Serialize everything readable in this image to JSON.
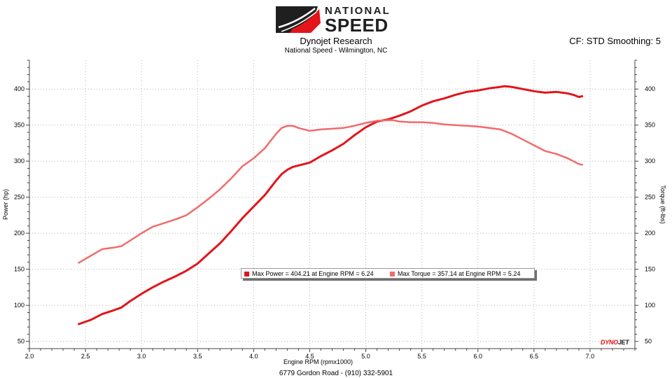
{
  "header": {
    "brand_line1": "NATIONAL",
    "brand_line2": "SPEED",
    "title": "Dynojet Research",
    "subtitle": "National Speed - Wilmington, NC",
    "cf_label": "CF: STD Smoothing: 5"
  },
  "footer": {
    "address": "6779 Gordon Road - (910) 332-5901"
  },
  "watermark": {
    "part1": "DYNO",
    "part2": "JET"
  },
  "legend": {
    "items": [
      {
        "text": "Max Power = 404.21 at Engine RPM = 6.24",
        "color": "#e3141a"
      },
      {
        "text": "Max Torque = 357.14 at Engine RPM = 5.24",
        "color": "#f16b6b"
      }
    ]
  },
  "colors": {
    "power": "#e3141a",
    "torque": "#f16b6b",
    "logo_red": "#e3141a",
    "logo_dark": "#1f1f1f"
  },
  "chart_data": {
    "type": "line",
    "xlabel": "Engine RPM (rpmx1000)",
    "ylabel": "Power (hp)",
    "y2label": "Torque (ft-lbs)",
    "xlim": [
      2.0,
      7.4
    ],
    "ylim": [
      40,
      440
    ],
    "y2lim": [
      40,
      440
    ],
    "xticks": [
      "2.0",
      "2.5",
      "3.0",
      "3.5",
      "4.0",
      "4.5",
      "5.0",
      "5.5",
      "6.0",
      "6.5",
      "7.0"
    ],
    "yticks": [
      "50",
      "100",
      "150",
      "200",
      "250",
      "300",
      "350",
      "400"
    ],
    "y2ticks": [
      "50",
      "100",
      "150",
      "200",
      "250",
      "300",
      "350",
      "400"
    ],
    "grid": true,
    "legend": "inside-lower-center",
    "series": [
      {
        "axis": "left",
        "color": "#e3141a",
        "x": [
          2.44,
          2.55,
          2.65,
          2.75,
          2.82,
          2.9,
          3.0,
          3.1,
          3.2,
          3.3,
          3.4,
          3.5,
          3.6,
          3.7,
          3.8,
          3.9,
          4.0,
          4.1,
          4.2,
          4.25,
          4.3,
          4.35,
          4.4,
          4.5,
          4.6,
          4.7,
          4.8,
          4.9,
          5.0,
          5.1,
          5.2,
          5.3,
          5.4,
          5.5,
          5.6,
          5.7,
          5.8,
          5.9,
          6.0,
          6.1,
          6.2,
          6.24,
          6.3,
          6.4,
          6.5,
          6.6,
          6.7,
          6.8,
          6.85,
          6.9,
          6.93
        ],
        "values": [
          74,
          80,
          88,
          93,
          97,
          106,
          116,
          125,
          133,
          140,
          148,
          158,
          172,
          186,
          203,
          221,
          237,
          253,
          273,
          282,
          288,
          292,
          294,
          298,
          307,
          315,
          324,
          336,
          347,
          355,
          358,
          363,
          369,
          377,
          383,
          387,
          392,
          396,
          398,
          401,
          403,
          404,
          403,
          400,
          397,
          395,
          396,
          394,
          392,
          389,
          390
        ]
      },
      {
        "axis": "right",
        "color": "#f16b6b",
        "x": [
          2.44,
          2.55,
          2.65,
          2.75,
          2.82,
          2.9,
          3.0,
          3.1,
          3.2,
          3.3,
          3.4,
          3.5,
          3.6,
          3.7,
          3.8,
          3.9,
          4.0,
          4.1,
          4.2,
          4.25,
          4.3,
          4.35,
          4.4,
          4.5,
          4.6,
          4.7,
          4.8,
          4.9,
          5.0,
          5.1,
          5.24,
          5.3,
          5.4,
          5.5,
          5.6,
          5.7,
          5.8,
          5.9,
          6.0,
          6.1,
          6.2,
          6.3,
          6.4,
          6.5,
          6.6,
          6.7,
          6.8,
          6.85,
          6.9,
          6.93
        ],
        "values": [
          159,
          169,
          178,
          180,
          182,
          190,
          200,
          209,
          214,
          219,
          225,
          236,
          248,
          261,
          276,
          293,
          304,
          318,
          338,
          346,
          349,
          349,
          346,
          342,
          344,
          345,
          346,
          349,
          353,
          356,
          357,
          355,
          354,
          354,
          353,
          351,
          350,
          349,
          348,
          346,
          344,
          338,
          330,
          322,
          314,
          310,
          304,
          300,
          296,
          295
        ]
      }
    ]
  }
}
